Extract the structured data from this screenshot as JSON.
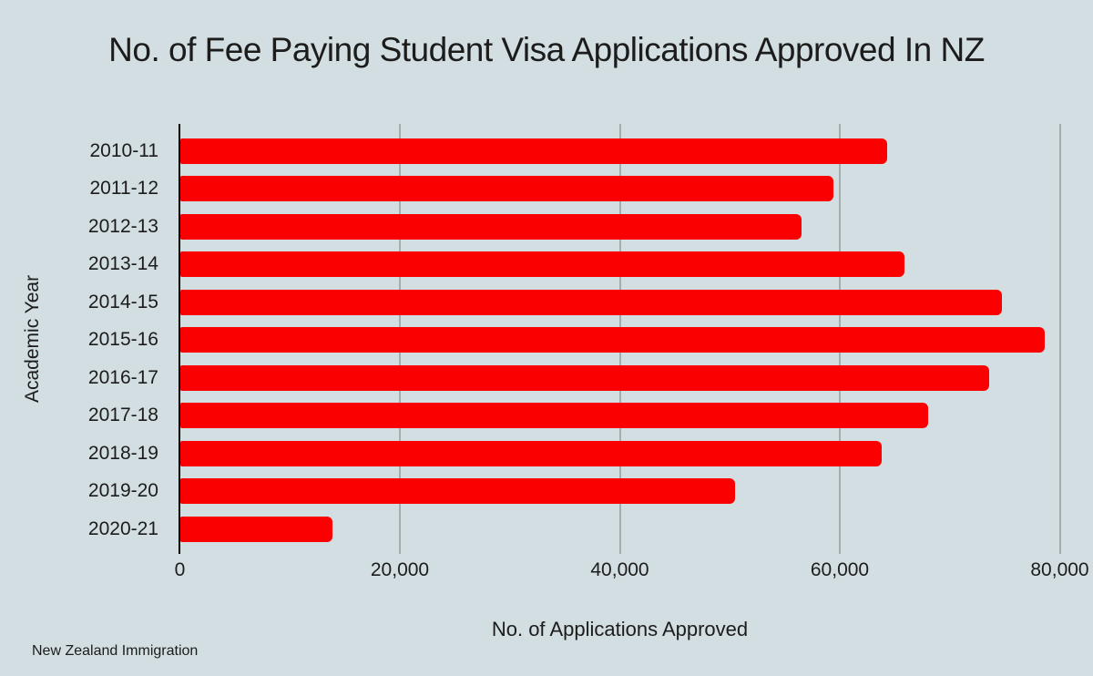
{
  "source": "New Zealand Immigration",
  "chart_data": {
    "type": "bar",
    "orientation": "horizontal",
    "title": "No. of Fee Paying Student Visa Applications Approved In NZ",
    "xlabel": "No. of Applications Approved",
    "ylabel": "Academic Year",
    "categories": [
      "2010-11",
      "2011-12",
      "2012-13",
      "2013-14",
      "2014-15",
      "2015-16",
      "2016-17",
      "2017-18",
      "2018-19",
      "2019-20",
      "2020-21"
    ],
    "values": [
      64300,
      59400,
      56500,
      65800,
      74700,
      78600,
      73500,
      68000,
      63800,
      50400,
      13800
    ],
    "xlim": [
      0,
      82000
    ],
    "xticks": [
      0,
      20000,
      40000,
      60000,
      80000
    ],
    "xtick_labels": [
      "0",
      "20,000",
      "40,000",
      "60,000",
      "80,000"
    ],
    "grid": true,
    "legend": false,
    "colors": {
      "background": "#d2dee1",
      "bar": "#fb0000",
      "gridline": "#a3adb0",
      "axis": "#000000",
      "text": "#1c1c1c"
    }
  }
}
